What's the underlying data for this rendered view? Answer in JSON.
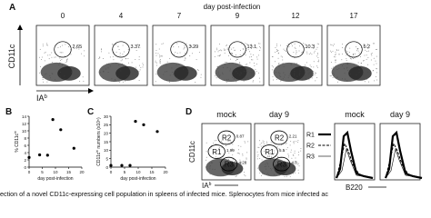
{
  "panel_a": {
    "label": "A",
    "title": "day post-infection",
    "days": [
      "0",
      "4",
      "7",
      "9",
      "12",
      "17"
    ],
    "gate_values": [
      "2.65",
      "3.37",
      "3.29",
      "13.1",
      "10.3",
      "5.2"
    ],
    "y_label": "CD11c",
    "x_label": "IA",
    "x_label_sup": "b"
  },
  "panel_b": {
    "label": "B",
    "chart": {
      "type": "scatter",
      "x": [
        0,
        4,
        7,
        9,
        12,
        17
      ],
      "values": [
        2.65,
        3.37,
        3.29,
        13.1,
        10.3,
        5.2
      ],
      "xlim": [
        0,
        20
      ],
      "ylim": [
        0,
        14
      ],
      "xticks": [
        0,
        5,
        10,
        15,
        20
      ],
      "yticks": [
        0,
        2,
        4,
        6,
        8,
        10,
        12,
        14
      ],
      "x_label": "day post-infection",
      "y_label": "% CD11c",
      "y_label_sup": "hi"
    }
  },
  "panel_c": {
    "label": "C",
    "chart": {
      "type": "scatter",
      "x": [
        0,
        4,
        7,
        9,
        12,
        17
      ],
      "values": [
        1,
        1,
        1,
        27,
        25,
        21
      ],
      "xlim": [
        0,
        20
      ],
      "ylim": [
        0,
        30
      ],
      "xticks": [
        0,
        5,
        10,
        15,
        20
      ],
      "yticks": [
        0,
        5,
        10,
        15,
        20,
        25,
        30
      ],
      "x_label": "day post-infection",
      "y_label": "CD11c",
      "y_label_sup": "hi",
      "y_label_rest": " numbers (x10⁵)"
    }
  },
  "panel_d": {
    "label": "D",
    "y_label": "CD11c",
    "x_label": "IA",
    "x_label_sup": "b",
    "plots": [
      {
        "title": "mock",
        "gates": [
          {
            "name": "R2",
            "value": "0.87"
          },
          {
            "name": "R1",
            "value": "1.99"
          },
          {
            "name": "R3",
            "value": "4.28"
          }
        ]
      },
      {
        "title": "day 9",
        "gates": [
          {
            "name": "R2",
            "value": "2.21"
          },
          {
            "name": "R1",
            "value": "5.5"
          },
          {
            "name": "R3",
            "value": "4.8"
          }
        ]
      }
    ],
    "legend": [
      "R1",
      "R2",
      "R3"
    ],
    "histograms": [
      "mock",
      "day 9"
    ],
    "hist_x_label": "B220"
  },
  "caption": "ection of a novel CD11c-expressing cell population in spleens of infected mice. Splenocytes from mice infected ac"
}
